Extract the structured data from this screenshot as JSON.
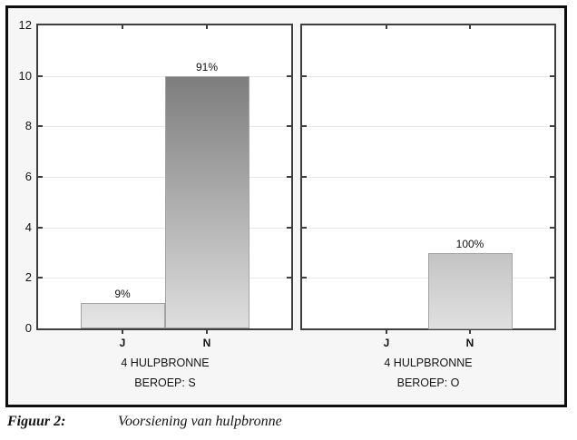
{
  "figure": {
    "caption_label": "Figuur 2:",
    "caption_text": "Voorsiening van hulpbronne"
  },
  "chart_data": {
    "type": "bar",
    "title": "",
    "xlabel": "",
    "ylabel": "",
    "ylim": [
      0,
      12
    ],
    "y_ticks": [
      0,
      2,
      4,
      6,
      8,
      10,
      12
    ],
    "grid_values": [
      2,
      4,
      6,
      8,
      10
    ],
    "grid": true,
    "legend": false,
    "categories": [
      "J",
      "N"
    ],
    "panels": [
      {
        "group_label": "4 HULPBRONNE",
        "sub_label": "BEROEP: S",
        "bars": [
          {
            "category": "J",
            "value": 1,
            "label": "9%",
            "top_color": "#dcdcdc",
            "bottom_color": "#e6e6e6"
          },
          {
            "category": "N",
            "value": 10,
            "label": "91%",
            "top_color": "#7d7d7d",
            "bottom_color": "#dedede"
          }
        ]
      },
      {
        "group_label": "4 HULPBRONNE",
        "sub_label": "BEROEP: O",
        "bars": [
          {
            "category": "J",
            "value": 0,
            "label": "",
            "top_color": "#e0e0e0",
            "bottom_color": "#e6e6e6"
          },
          {
            "category": "N",
            "value": 3,
            "label": "100%",
            "top_color": "#c4c4c4",
            "bottom_color": "#e0e0e0"
          }
        ]
      }
    ],
    "style": {
      "box_background": "#f6f6f6",
      "box_border": "#0e0e0e",
      "panel_background": "#ffffff",
      "panel_border": "#3f3f3f",
      "gridline_color": "#e9e9e9",
      "text_color": "#141414"
    }
  }
}
